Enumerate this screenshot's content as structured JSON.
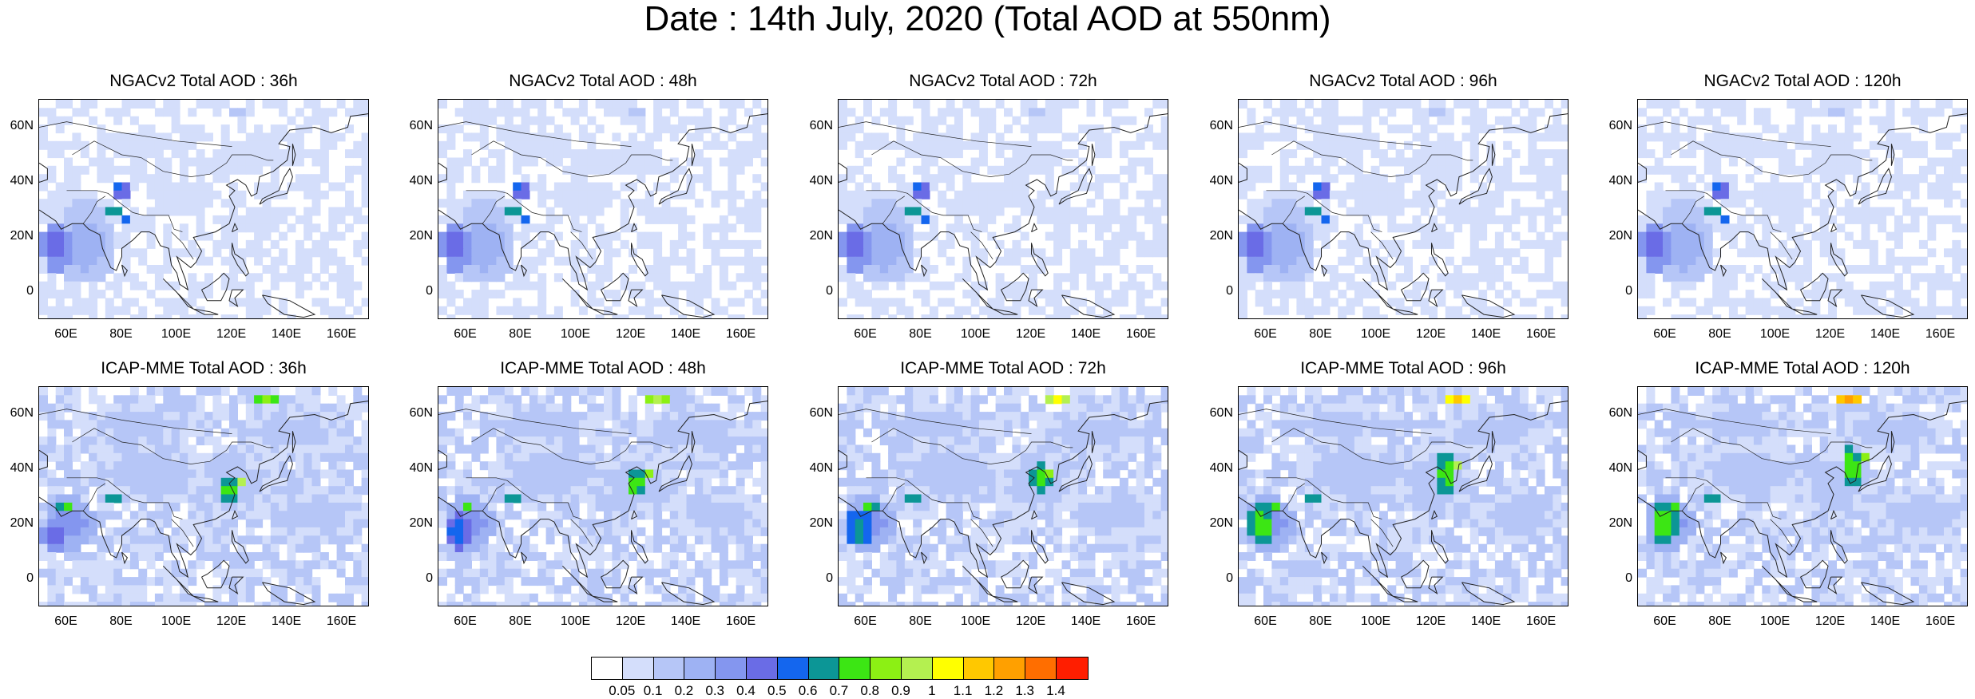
{
  "title": "Date : 14th July, 2020 (Total AOD at 550nm)",
  "map": {
    "lon_range": [
      50,
      170
    ],
    "lat_range": [
      -10,
      70
    ],
    "y_ticks": [
      "60N",
      "40N",
      "20N",
      "0"
    ],
    "x_ticks": [
      "60E",
      "80E",
      "100E",
      "120E",
      "140E",
      "160E"
    ]
  },
  "panels": [
    {
      "title": "NGACv2 Total AOD : 36h",
      "model": "ngac",
      "lead": 36
    },
    {
      "title": "NGACv2 Total AOD : 48h",
      "model": "ngac",
      "lead": 48
    },
    {
      "title": "NGACv2 Total AOD : 72h",
      "model": "ngac",
      "lead": 72
    },
    {
      "title": "NGACv2 Total AOD : 96h",
      "model": "ngac",
      "lead": 96
    },
    {
      "title": "NGACv2 Total AOD : 120h",
      "model": "ngac",
      "lead": 120
    },
    {
      "title": "ICAP-MME Total AOD : 36h",
      "model": "icap",
      "lead": 36
    },
    {
      "title": "ICAP-MME Total AOD : 48h",
      "model": "icap",
      "lead": 48
    },
    {
      "title": "ICAP-MME Total AOD : 72h",
      "model": "icap",
      "lead": 72
    },
    {
      "title": "ICAP-MME Total AOD : 96h",
      "model": "icap",
      "lead": 96
    },
    {
      "title": "ICAP-MME Total AOD : 120h",
      "model": "icap",
      "lead": 120
    }
  ],
  "colorbar": {
    "labels": [
      "0.05",
      "0.1",
      "0.2",
      "0.3",
      "0.4",
      "0.5",
      "0.6",
      "0.7",
      "0.8",
      "0.9",
      "1",
      "1.1",
      "1.2",
      "1.3",
      "1.4"
    ],
    "colors": [
      "#ffffff",
      "#d4defb",
      "#b6c6f7",
      "#9eb2f3",
      "#8496ef",
      "#6a6ce6",
      "#1466ee",
      "#0c9696",
      "#3ce614",
      "#8cf014",
      "#b4f050",
      "#ffff00",
      "#ffc800",
      "#ffa000",
      "#ff6e00",
      "#ff1e00"
    ]
  }
}
